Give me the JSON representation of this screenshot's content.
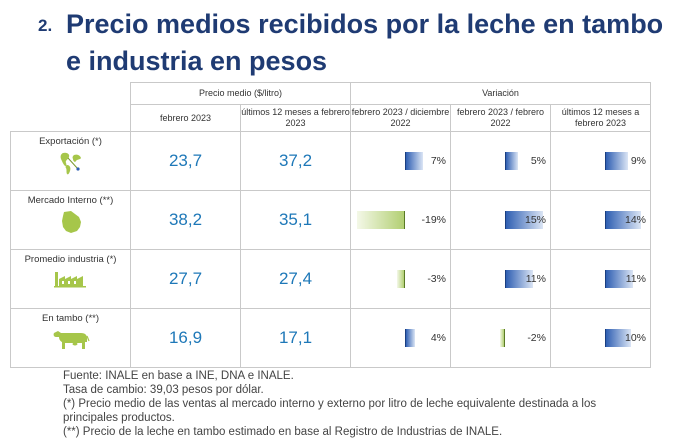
{
  "title": {
    "number": "2.",
    "text": "Precio medios recibidos por la leche en tambo e industria en pesos"
  },
  "table": {
    "group_price": "Precio medio ($/litro)",
    "group_variation": "Variación",
    "col_feb": "febrero 2023",
    "col_12m": "últimos 12 meses a febrero 2023",
    "col_v1": "febrero 2023 / diciembre 2022",
    "col_v2": "febrero 2023 / febrero 2022",
    "col_v3": "últimos 12 meses a febrero 2023",
    "rows": [
      {
        "label": "Exportación (*)",
        "icon": "globe-icon",
        "feb": "23,7",
        "m12": "37,2",
        "v1": "7%",
        "v2": "5%",
        "v3": "9%",
        "v1_val": 7,
        "v2_val": 5,
        "v3_val": 9
      },
      {
        "label": "Mercado Interno (**)",
        "icon": "uruguay-map-icon",
        "feb": "38,2",
        "m12": "35,1",
        "v1": "-19%",
        "v2": "15%",
        "v3": "14%",
        "v1_val": -19,
        "v2_val": 15,
        "v3_val": 14
      },
      {
        "label": "Promedio industria (*)",
        "icon": "factory-icon",
        "feb": "27,7",
        "m12": "27,4",
        "v1": "-3%",
        "v2": "11%",
        "v3": "11%",
        "v1_val": -3,
        "v2_val": 11,
        "v3_val": 11
      },
      {
        "label": "En tambo (**)",
        "icon": "cow-icon",
        "feb": "16,9",
        "m12": "17,1",
        "v1": "4%",
        "v2": "-2%",
        "v3": "10%",
        "v1_val": 4,
        "v2_val": -2,
        "v3_val": 10
      }
    ]
  },
  "notes": {
    "source": "Fuente: INALE en base a INE, DNA e INALE.",
    "exchange": "Tasa de cambio: 39,03 pesos por dólar.",
    "note1": "(*) Precio medio de las ventas al mercado interno y externo por litro de leche equivalente destinada a los principales productos.",
    "note2": "(**) Precio de la leche en tambo estimado en base al Registro de Industrias de INALE."
  },
  "colors": {
    "title": "#1f3b73",
    "number": "#1e78b8",
    "positive_bar": "#2f5fb2",
    "negative_bar": "#b2cf72",
    "icon": "#a6c64a"
  }
}
